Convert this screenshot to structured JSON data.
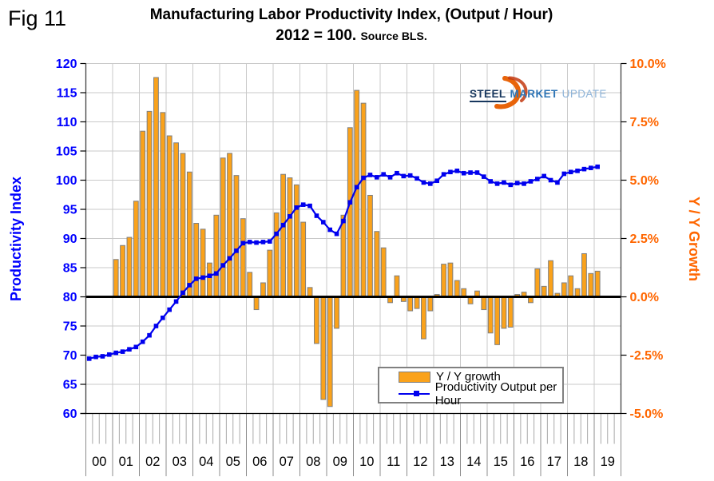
{
  "fig_label": "Fig 11",
  "title": {
    "line1": "Manufacturing Labor Productivity Index, (Output / Hour)",
    "line2_main": "2012 = 100.",
    "line2_source": "Source BLS."
  },
  "logo": {
    "part1": "STEEL",
    "part2": "MARKET",
    "part3": "UPDATE"
  },
  "legend": {
    "bar_label": "Y / Y growth",
    "line_label": "Productivity Output per Hour"
  },
  "left_axis": {
    "title": "Productivity Index",
    "tick_labels": [
      "120",
      "115",
      "110",
      "105",
      "100",
      "95",
      "90",
      "85",
      "80",
      "75",
      "70",
      "65",
      "60"
    ]
  },
  "right_axis": {
    "title": "Y / Y Growth",
    "tick_labels": [
      "10.0%",
      "7.5%",
      "5.0%",
      "2.5%",
      "0.0%",
      "-2.5%",
      "-5.0%"
    ]
  },
  "x_axis": {
    "years": [
      "00",
      "01",
      "02",
      "03",
      "04",
      "05",
      "06",
      "07",
      "08",
      "09",
      "10",
      "11",
      "12",
      "13",
      "14",
      "15",
      "16",
      "17",
      "18",
      "19"
    ]
  },
  "colors": {
    "bar_fill": "#FAA21B",
    "bar_stroke": "#7F7F7F",
    "line": "#0000EE",
    "left_labels": "#0000FF",
    "right_labels": "#FF6600",
    "gridline": "#C9C9C9",
    "minor_tick": "#A8A8A8",
    "axis": "#404040",
    "zero_line": "#000000"
  },
  "chart_data": {
    "type": "combo-bar-line",
    "x_unit": "quarter",
    "x_start": "2000Q1",
    "x_end": "2019Q1",
    "left_axis_range": [
      60,
      120
    ],
    "left_tick_step": 5,
    "right_axis_range_pct": [
      -5.0,
      10.0
    ],
    "right_tick_step_pct": 2.5,
    "baseline_left": 80,
    "baseline_right_pct": 0.0,
    "grid": true,
    "legend_position": "inside-bottom-right",
    "series": [
      {
        "name": "Y / Y growth",
        "type": "bar",
        "axis": "right",
        "unit": "%",
        "start": "2001Q1",
        "values": [
          1.6,
          2.2,
          2.55,
          4.1,
          7.1,
          7.95,
          9.4,
          7.9,
          6.9,
          6.6,
          6.15,
          5.35,
          3.15,
          2.9,
          1.45,
          3.5,
          5.95,
          6.15,
          5.2,
          3.35,
          1.05,
          -0.55,
          0.6,
          2.0,
          3.6,
          5.25,
          5.1,
          4.8,
          3.2,
          0.4,
          -2.0,
          -4.4,
          -4.7,
          -1.35,
          3.5,
          7.25,
          8.85,
          8.3,
          4.35,
          2.8,
          2.1,
          -0.25,
          0.9,
          -0.2,
          -0.6,
          -0.5,
          -1.8,
          -0.6,
          0.1,
          1.4,
          1.45,
          0.7,
          0.35,
          -0.3,
          0.25,
          -0.55,
          -1.55,
          -2.05,
          -1.35,
          -1.3,
          0.1,
          0.2,
          -0.25,
          1.2,
          0.45,
          1.55,
          0.15,
          0.6,
          0.9,
          0.35,
          1.85,
          1.0,
          1.1
        ]
      },
      {
        "name": "Productivity Output per Hour",
        "type": "line",
        "axis": "left",
        "unit": "index (2012=100)",
        "start": "2000Q1",
        "values": [
          69.4,
          69.7,
          69.8,
          70.1,
          70.4,
          70.6,
          71.0,
          71.4,
          72.3,
          73.4,
          75.0,
          76.4,
          77.8,
          79.2,
          80.7,
          82.0,
          83.1,
          83.3,
          83.6,
          84.0,
          85.4,
          86.6,
          87.9,
          89.2,
          89.4,
          89.3,
          89.4,
          89.5,
          90.8,
          92.3,
          93.8,
          95.3,
          95.8,
          95.6,
          93.9,
          92.8,
          91.5,
          90.8,
          93.0,
          96.2,
          98.8,
          100.4,
          100.9,
          100.5,
          101.0,
          100.5,
          101.2,
          100.7,
          100.8,
          100.3,
          99.6,
          99.4,
          99.9,
          101.0,
          101.4,
          101.6,
          101.2,
          101.3,
          101.3,
          100.6,
          99.8,
          99.4,
          99.6,
          99.2,
          99.5,
          99.4,
          99.8,
          100.2,
          100.7,
          100.0,
          99.6,
          101.1,
          101.4,
          101.6,
          101.9,
          102.1,
          102.3
        ]
      }
    ]
  }
}
